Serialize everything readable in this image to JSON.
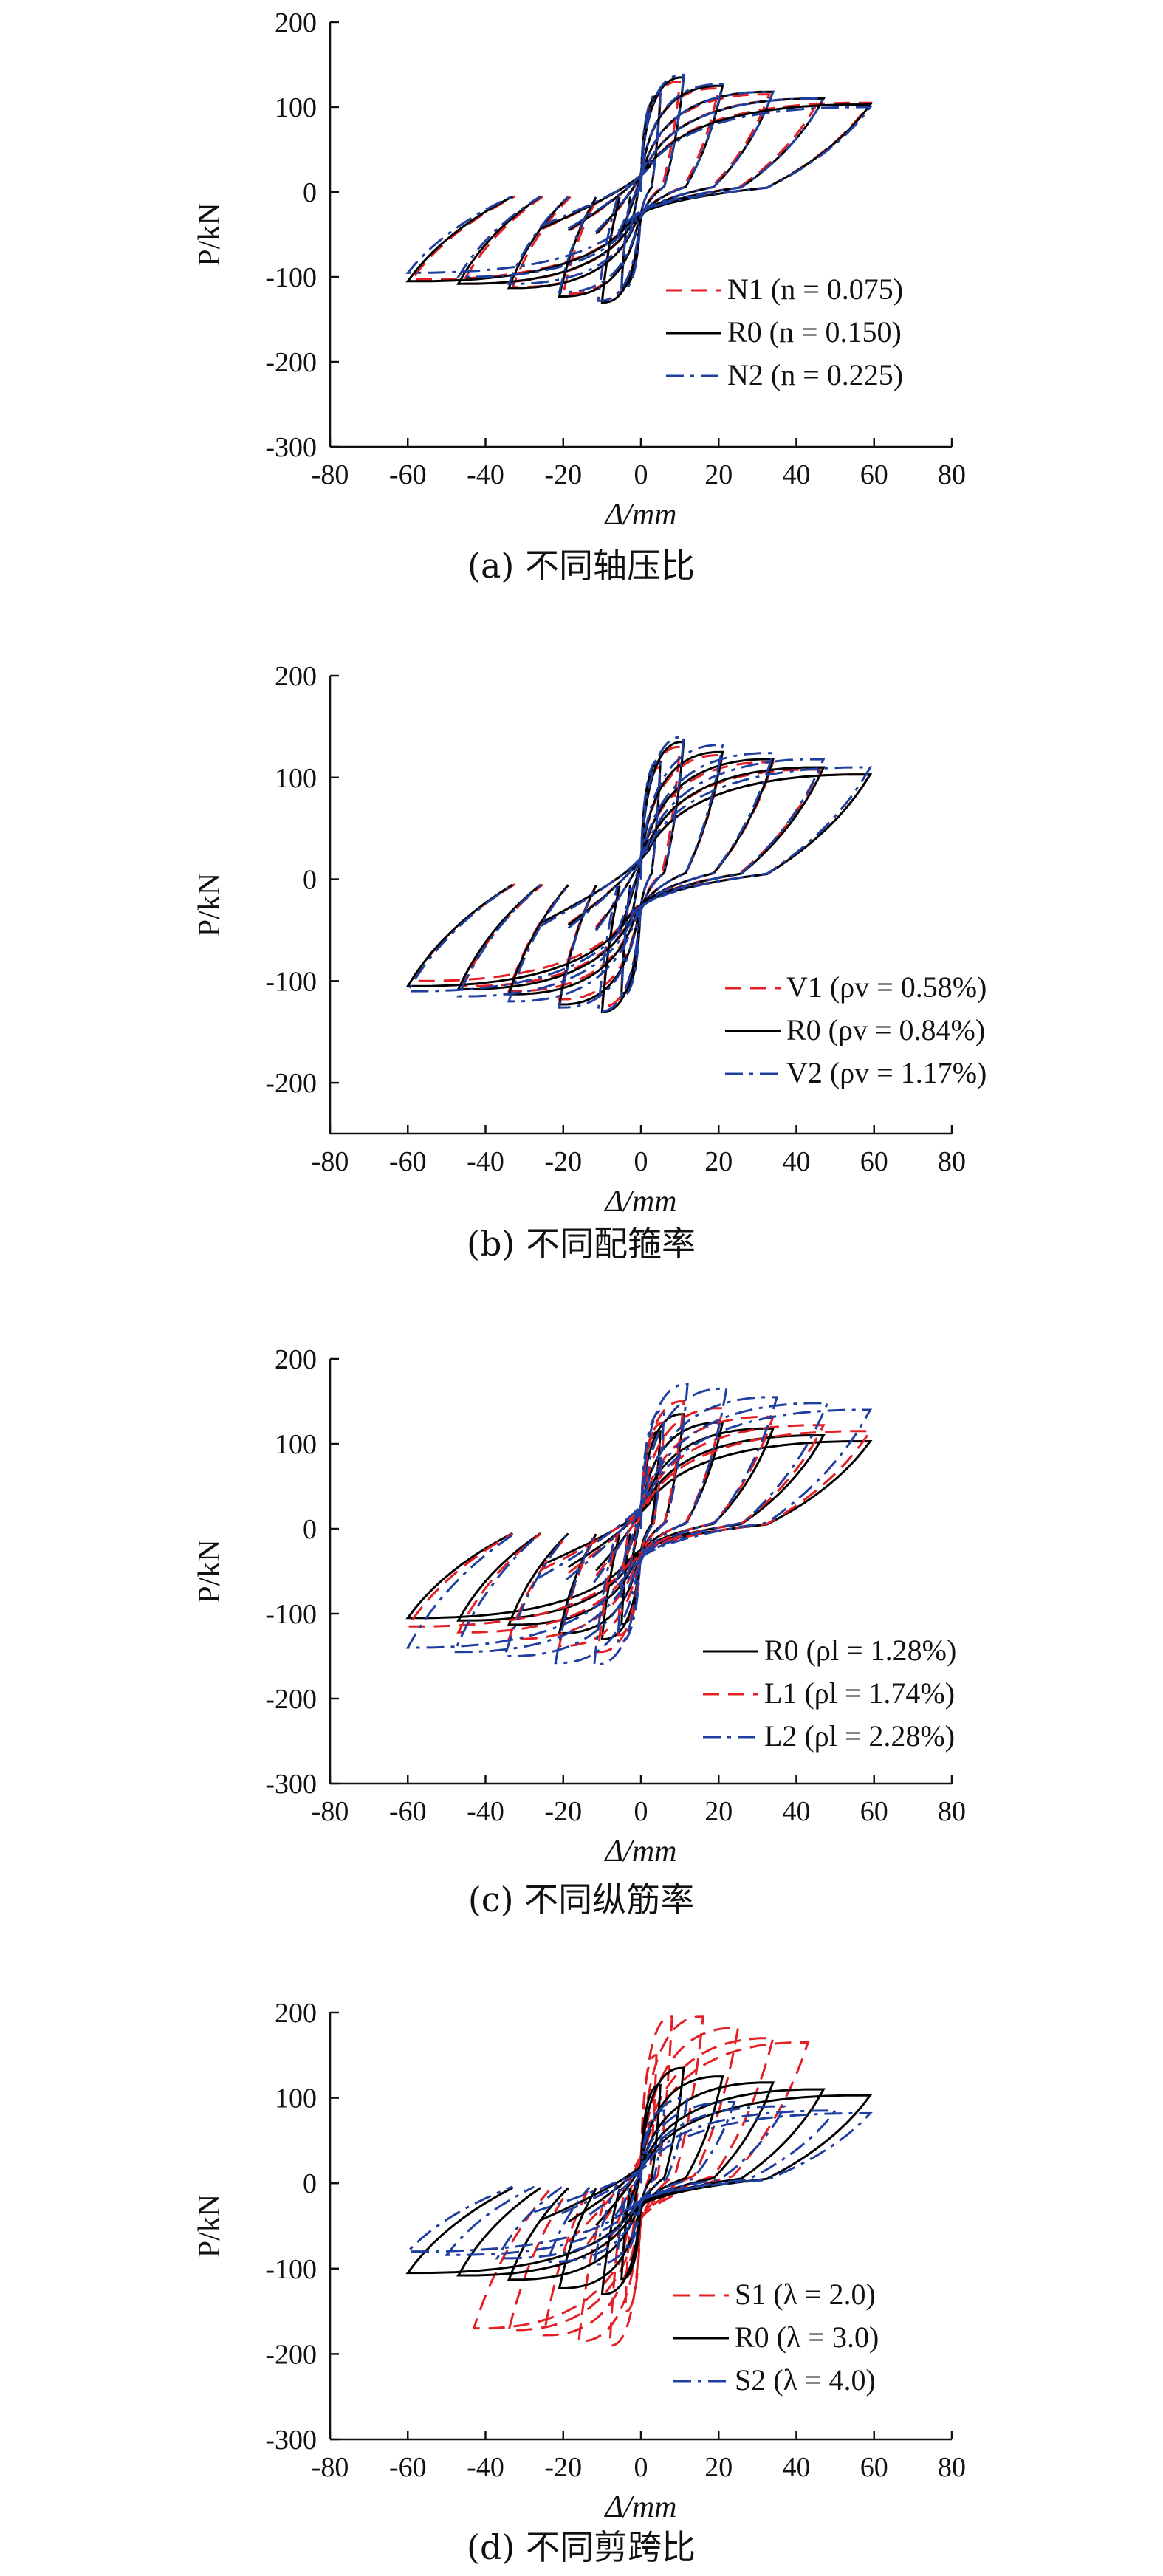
{
  "colors": {
    "N1": "#e31e24",
    "R0": "#000000",
    "N2": "#1f3fa0",
    "V1": "#e31e24",
    "V2": "#1f3fa0",
    "L1": "#e31e24",
    "L2": "#1f3fa0",
    "S1": "#e31e24",
    "S2": "#1f3fa0"
  },
  "chart_data": [
    {
      "type": "line",
      "subplot": "a",
      "caption": "(a) 不同轴压比",
      "xlabel": "Δ/mm",
      "ylabel": "P/kN",
      "xlim": [
        -80,
        80
      ],
      "ylim": [
        -300,
        200
      ],
      "xticks": [
        -80,
        -60,
        -40,
        -20,
        0,
        20,
        40,
        60,
        80
      ],
      "yticks": [
        -300,
        -200,
        -100,
        0,
        100,
        200
      ],
      "legend_position": "bottom-right",
      "series": [
        {
          "key": "N1",
          "name": "N1 (n = 0.075)",
          "style": "dashed",
          "pos_peak": [
            [
              5,
              110
            ],
            [
              10,
              130
            ],
            [
              20,
              122
            ],
            [
              33,
              115
            ],
            [
              46,
              110
            ],
            [
              59,
              105
            ]
          ],
          "neg_peak": [
            [
              -5,
              -110
            ],
            [
              -10,
              -128
            ],
            [
              -20,
              -120
            ],
            [
              -33,
              -112
            ],
            [
              -46,
              -108
            ],
            [
              -59,
              -103
            ]
          ]
        },
        {
          "key": "R0",
          "name": "R0 (n = 0.150)",
          "style": "solid",
          "pos_peak": [
            [
              5,
              115
            ],
            [
              11,
              135
            ],
            [
              21,
              125
            ],
            [
              34,
              118
            ],
            [
              47,
              110
            ],
            [
              59,
              103
            ]
          ],
          "neg_peak": [
            [
              -5,
              -112
            ],
            [
              -10,
              -130
            ],
            [
              -21,
              -123
            ],
            [
              -34,
              -113
            ],
            [
              -47,
              -108
            ],
            [
              -60,
              -105
            ]
          ]
        },
        {
          "key": "N2",
          "name": "N2 (n = 0.225)",
          "style": "dashdot",
          "pos_peak": [
            [
              5,
              118
            ],
            [
              11,
              138
            ],
            [
              21,
              127
            ],
            [
              34,
              118
            ],
            [
              47,
              110
            ],
            [
              59,
              100
            ]
          ],
          "neg_peak": [
            [
              -5,
              -115
            ],
            [
              -11,
              -128
            ],
            [
              -21,
              -118
            ],
            [
              -34,
              -108
            ],
            [
              -47,
              -100
            ],
            [
              -60,
              -95
            ]
          ]
        }
      ]
    },
    {
      "type": "line",
      "subplot": "b",
      "caption": "(b) 不同配箍率",
      "xlabel": "Δ/mm",
      "ylabel": "P/kN",
      "xlim": [
        -80,
        80
      ],
      "ylim": [
        -250,
        200
      ],
      "xticks": [
        -80,
        -60,
        -40,
        -20,
        0,
        20,
        40,
        60,
        80
      ],
      "yticks": [
        -200,
        -100,
        0,
        100,
        200
      ],
      "legend_position": "bottom-right",
      "series": [
        {
          "key": "V1",
          "name": "V1 (ρv = 0.58%)",
          "style": "dashed",
          "pos_peak": [
            [
              5,
              110
            ],
            [
              10,
              130
            ],
            [
              21,
              122
            ],
            [
              34,
              115
            ],
            [
              46,
              108
            ],
            [
              59,
              103
            ]
          ],
          "neg_peak": [
            [
              -5,
              -108
            ],
            [
              -10,
              -125
            ],
            [
              -21,
              -118
            ],
            [
              -34,
              -110
            ],
            [
              -46,
              -105
            ],
            [
              -59,
              -100
            ]
          ]
        },
        {
          "key": "R0",
          "name": "R0 (ρv = 0.84%)",
          "style": "solid",
          "pos_peak": [
            [
              5,
              115
            ],
            [
              11,
              135
            ],
            [
              21,
              125
            ],
            [
              34,
              118
            ],
            [
              47,
              110
            ],
            [
              59,
              103
            ]
          ],
          "neg_peak": [
            [
              -5,
              -112
            ],
            [
              -10,
              -130
            ],
            [
              -21,
              -123
            ],
            [
              -34,
              -113
            ],
            [
              -47,
              -108
            ],
            [
              -60,
              -105
            ]
          ]
        },
        {
          "key": "V2",
          "name": "V2 (ρv = 1.17%)",
          "style": "dashdot",
          "pos_peak": [
            [
              5,
              118
            ],
            [
              11,
              140
            ],
            [
              21,
              132
            ],
            [
              34,
              124
            ],
            [
              47,
              118
            ],
            [
              59,
              110
            ]
          ],
          "neg_peak": [
            [
              -5,
              -115
            ],
            [
              -11,
              -130
            ],
            [
              -21,
              -126
            ],
            [
              -34,
              -120
            ],
            [
              -47,
              -115
            ],
            [
              -60,
              -110
            ]
          ]
        }
      ]
    },
    {
      "type": "line",
      "subplot": "c",
      "caption": "(c) 不同纵筋率",
      "xlabel": "Δ/mm",
      "ylabel": "P/kN",
      "xlim": [
        -80,
        80
      ],
      "ylim": [
        -300,
        200
      ],
      "xticks": [
        -80,
        -60,
        -40,
        -20,
        0,
        20,
        40,
        60,
        80
      ],
      "yticks": [
        -300,
        -200,
        -100,
        0,
        100,
        200
      ],
      "legend_position": "bottom-right",
      "series": [
        {
          "key": "R0",
          "name": "R0 (ρl = 1.28%)",
          "style": "solid",
          "pos_peak": [
            [
              5,
              115
            ],
            [
              11,
              135
            ],
            [
              21,
              125
            ],
            [
              34,
              118
            ],
            [
              47,
              110
            ],
            [
              59,
              103
            ]
          ],
          "neg_peak": [
            [
              -5,
              -112
            ],
            [
              -10,
              -130
            ],
            [
              -21,
              -123
            ],
            [
              -34,
              -113
            ],
            [
              -47,
              -108
            ],
            [
              -60,
              -105
            ]
          ]
        },
        {
          "key": "L1",
          "name": "L1 (ρl = 1.74%)",
          "style": "dashed",
          "pos_peak": [
            [
              6,
              125
            ],
            [
              11,
              150
            ],
            [
              21,
              142
            ],
            [
              34,
              132
            ],
            [
              47,
              122
            ],
            [
              59,
              115
            ]
          ],
          "neg_peak": [
            [
              -6,
              -125
            ],
            [
              -11,
              -145
            ],
            [
              -21,
              -138
            ],
            [
              -34,
              -130
            ],
            [
              -47,
              -122
            ],
            [
              -60,
              -115
            ]
          ]
        },
        {
          "key": "L2",
          "name": "L2 (ρl = 2.28%)",
          "style": "dashdot",
          "pos_peak": [
            [
              6,
              140
            ],
            [
              12,
              170
            ],
            [
              22,
              165
            ],
            [
              35,
              155
            ],
            [
              48,
              148
            ],
            [
              59,
              140
            ]
          ],
          "neg_peak": [
            [
              -6,
              -135
            ],
            [
              -12,
              -160
            ],
            [
              -22,
              -158
            ],
            [
              -35,
              -150
            ],
            [
              -48,
              -145
            ],
            [
              -60,
              -140
            ]
          ]
        }
      ]
    },
    {
      "type": "line",
      "subplot": "d",
      "caption": "(d) 不同剪跨比",
      "xlabel": "Δ/mm",
      "ylabel": "P/kN",
      "xlim": [
        -80,
        80
      ],
      "ylim": [
        -300,
        200
      ],
      "xticks": [
        -80,
        -60,
        -40,
        -20,
        0,
        20,
        40,
        60,
        80
      ],
      "yticks": [
        -300,
        -200,
        -100,
        0,
        100,
        200
      ],
      "legend_position": "bottom-right",
      "series": [
        {
          "key": "S1",
          "name": "S1 (λ = 2.0)",
          "style": "dashed",
          "pos_peak": [
            [
              4,
              150
            ],
            [
              8,
              195
            ],
            [
              16,
              195
            ],
            [
              25,
              182
            ],
            [
              34,
              170
            ],
            [
              43,
              165
            ]
          ],
          "neg_peak": [
            [
              -4,
              -150
            ],
            [
              -8,
              -190
            ],
            [
              -16,
              -185
            ],
            [
              -25,
              -178
            ],
            [
              -34,
              -172
            ],
            [
              -43,
              -170
            ]
          ]
        },
        {
          "key": "R0",
          "name": "R0 (λ = 3.0)",
          "style": "solid",
          "pos_peak": [
            [
              5,
              115
            ],
            [
              11,
              135
            ],
            [
              21,
              125
            ],
            [
              34,
              118
            ],
            [
              47,
              110
            ],
            [
              59,
              103
            ]
          ],
          "neg_peak": [
            [
              -5,
              -112
            ],
            [
              -10,
              -130
            ],
            [
              -21,
              -123
            ],
            [
              -34,
              -113
            ],
            [
              -47,
              -108
            ],
            [
              -60,
              -105
            ]
          ]
        },
        {
          "key": "S2",
          "name": "S2 (λ = 4.0)",
          "style": "dashdot",
          "pos_peak": [
            [
              6,
              85
            ],
            [
              12,
              100
            ],
            [
              24,
              95
            ],
            [
              37,
              90
            ],
            [
              50,
              85
            ],
            [
              59,
              82
            ]
          ],
          "neg_peak": [
            [
              -6,
              -82
            ],
            [
              -12,
              -95
            ],
            [
              -24,
              -92
            ],
            [
              -37,
              -88
            ],
            [
              -50,
              -84
            ],
            [
              -60,
              -80
            ]
          ]
        }
      ]
    }
  ]
}
